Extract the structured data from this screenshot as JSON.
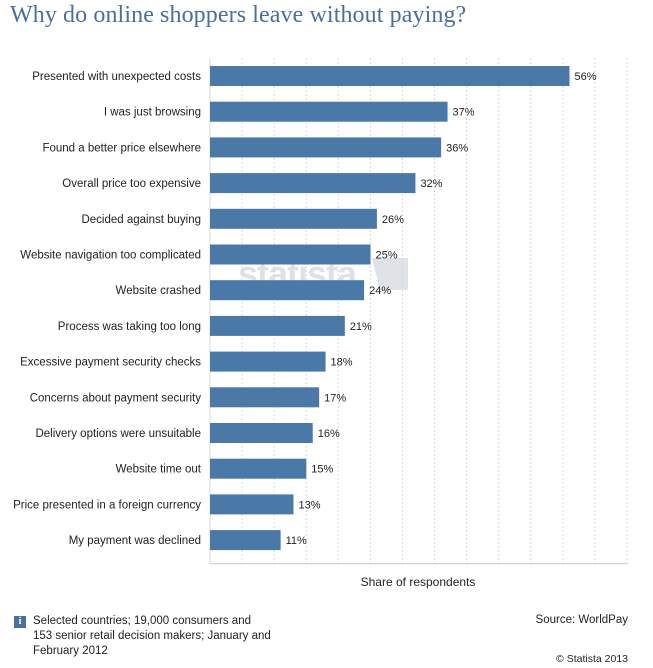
{
  "chart_data": {
    "type": "bar",
    "orientation": "horizontal",
    "title": "Why do online shoppers leave without paying?",
    "xlabel": "Share of respondents",
    "ylabel": "",
    "xlim": [
      0,
      65
    ],
    "grid": true,
    "categories": [
      "Presented with unexpected costs",
      "I was just browsing",
      "Found a better price elsewhere",
      "Overall price too expensive",
      "Decided against buying",
      "Website navigation too complicated",
      "Website crashed",
      "Process was taking too long",
      "Excessive payment security checks",
      "Concerns about payment security",
      "Delivery options were unsuitable",
      "Website time out",
      "Price presented in a foreign currency",
      "My payment was declined"
    ],
    "values": [
      56,
      37,
      36,
      32,
      26,
      25,
      24,
      21,
      18,
      17,
      16,
      15,
      13,
      11
    ],
    "value_labels": [
      "56%",
      "37%",
      "36%",
      "32%",
      "26%",
      "25%",
      "24%",
      "21%",
      "18%",
      "17%",
      "16%",
      "15%",
      "13%",
      "11%"
    ],
    "bar_color": "#4a79a8",
    "watermark": "statista"
  },
  "footer": {
    "info_icon": "i",
    "note": "Selected countries; 19,000 consumers and 153 senior retail decision makers; January and February 2012",
    "source": "Source: WorldPay",
    "copyright": "© Statista 2013"
  },
  "colors": {
    "title": "#4a6f9e",
    "bar": "#4a79a8",
    "grid": "#d9d9d9"
  }
}
